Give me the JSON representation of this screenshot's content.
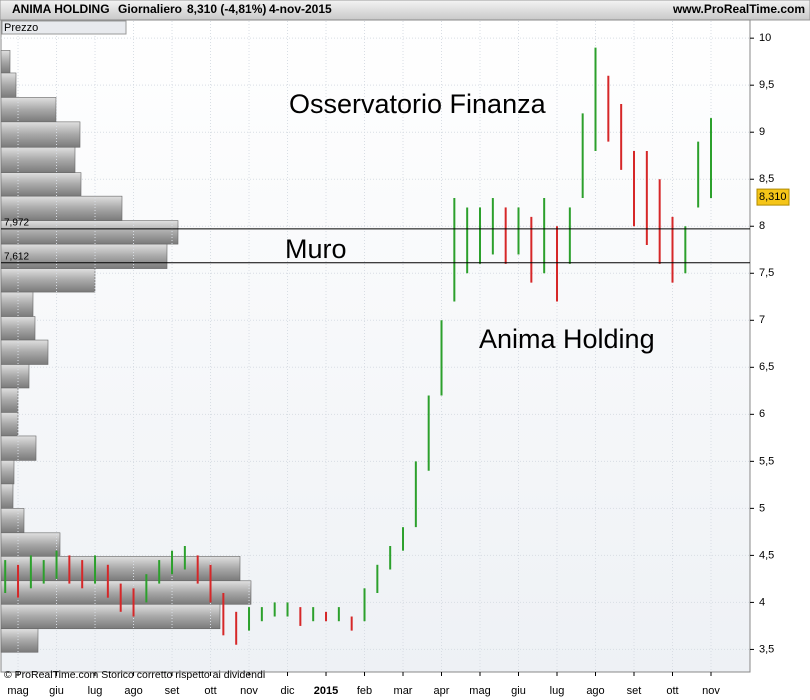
{
  "chart_data": {
    "type": "range_bars",
    "title": "ANIMA HOLDING",
    "period": "Giornaliero",
    "last_info": "8,310 (-4,81%)",
    "date": "4-nov-2015",
    "source_site": "www.ProRealTime.com",
    "panel_label": "Prezzo",
    "footer": "© ProRealTime.com  Storico corretto rispetto ai dividendi",
    "annotations": [
      "Osservatorio Finanza",
      "Muro",
      "Anima Holding"
    ],
    "categories": [
      null,
      "mag",
      null,
      null,
      "giu",
      null,
      null,
      "lug",
      null,
      null,
      "ago",
      null,
      null,
      "set",
      null,
      null,
      "ott",
      null,
      null,
      "nov",
      null,
      null,
      "dic",
      null,
      null,
      "2015",
      null,
      null,
      "feb",
      null,
      null,
      "mar",
      null,
      null,
      "apr",
      null,
      null,
      "mag",
      null,
      null,
      "giu",
      null,
      null,
      "lug",
      null,
      null,
      "ago",
      null,
      null,
      "set",
      null,
      null,
      "ott",
      null,
      null,
      "nov"
    ],
    "high": [
      4.45,
      4.4,
      4.5,
      4.45,
      4.55,
      4.5,
      4.45,
      4.5,
      4.4,
      4.2,
      4.15,
      4.3,
      4.45,
      4.55,
      4.6,
      4.5,
      4.4,
      4.1,
      3.9,
      3.95,
      3.95,
      4.0,
      4.0,
      3.95,
      3.95,
      3.9,
      3.95,
      3.85,
      4.15,
      4.4,
      4.6,
      4.8,
      5.5,
      6.2,
      7.0,
      8.3,
      8.2,
      8.2,
      8.3,
      8.2,
      8.2,
      8.1,
      8.3,
      8.0,
      8.2,
      9.2,
      9.9,
      9.6,
      9.3,
      8.8,
      8.8,
      8.5,
      8.1,
      8.0,
      8.9,
      9.15
    ],
    "low": [
      4.1,
      4.05,
      4.15,
      4.2,
      4.25,
      4.2,
      4.15,
      4.2,
      4.05,
      3.9,
      3.85,
      4.0,
      4.2,
      4.3,
      4.35,
      4.2,
      4.0,
      3.65,
      3.55,
      3.7,
      3.8,
      3.85,
      3.85,
      3.75,
      3.8,
      3.8,
      3.8,
      3.7,
      3.8,
      4.1,
      4.35,
      4.55,
      4.8,
      5.4,
      6.2,
      7.2,
      7.5,
      7.6,
      7.7,
      7.6,
      7.7,
      7.4,
      7.5,
      7.2,
      7.6,
      8.3,
      8.8,
      8.9,
      8.6,
      8.0,
      7.8,
      7.6,
      7.4,
      7.5,
      8.2,
      8.3
    ],
    "up_color": "#2ca02c",
    "down_color": "#d62728",
    "profile_bins": [
      9.87,
      9.63,
      9.37,
      9.11,
      8.84,
      8.57,
      8.32,
      8.06,
      7.81,
      7.55,
      7.3,
      7.04,
      6.79,
      6.53,
      6.28,
      6.02,
      5.77,
      5.51,
      5.26,
      5.0,
      4.74,
      4.49,
      4.23,
      3.98,
      3.72,
      3.47
    ],
    "profile_values": [
      9,
      15,
      55,
      79,
      74,
      80,
      121,
      177,
      166,
      94,
      32,
      34,
      47,
      28,
      17,
      17,
      35,
      13,
      12,
      23,
      59,
      239,
      250,
      219,
      37
    ],
    "hlines": [
      {
        "value": 7.972,
        "label": "7,972"
      },
      {
        "value": 7.612,
        "label": "7,612"
      }
    ],
    "last": {
      "value": 8.31,
      "label": "8,310"
    },
    "ylim": [
      3.26,
      10.14
    ],
    "yticks": [
      {
        "value": 3.5,
        "label": "3,5"
      },
      4,
      {
        "value": 4.5,
        "label": "4,5"
      },
      5,
      {
        "value": 5.5,
        "label": "5,5"
      },
      6,
      {
        "value": 6.5,
        "label": "6,5"
      },
      7,
      {
        "value": 7.5,
        "label": "7,5"
      },
      8,
      {
        "value": 8.5,
        "label": "8,5"
      },
      9,
      {
        "value": 9.5,
        "label": "9,5"
      },
      10
    ],
    "grid": true
  }
}
